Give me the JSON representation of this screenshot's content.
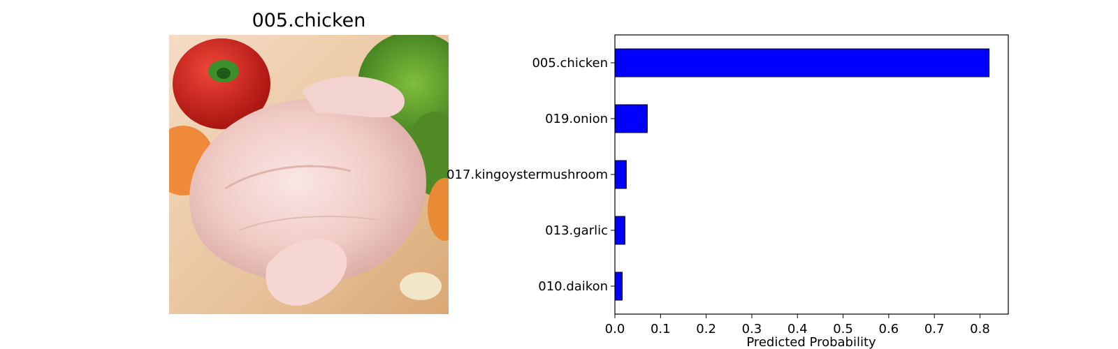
{
  "image_panel": {
    "title": "005.chicken"
  },
  "chart_data": {
    "type": "bar",
    "orientation": "horizontal",
    "categories": [
      "005.chicken",
      "019.onion",
      "017.kingoystermushroom",
      "013.garlic",
      "010.daikon"
    ],
    "values": [
      0.82,
      0.071,
      0.025,
      0.022,
      0.016
    ],
    "xlabel": "Predicted Probability",
    "ylabel": "",
    "xlim": [
      0,
      0.862
    ],
    "xticks": [
      "0.0",
      "0.1",
      "0.2",
      "0.3",
      "0.4",
      "0.5",
      "0.6",
      "0.7",
      "0.8"
    ],
    "bar_color": "#0000ff",
    "edge_color": "#000000",
    "grid": false
  }
}
